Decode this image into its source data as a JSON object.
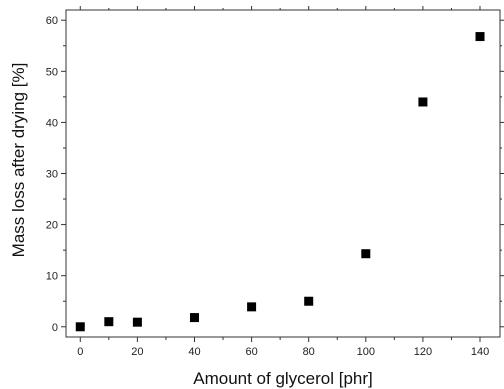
{
  "chart_data": {
    "type": "scatter",
    "title": "",
    "xlabel": "Amount of glycerol [phr]",
    "ylabel": "Mass loss after drying [%]",
    "xlim": [
      -5,
      147
    ],
    "ylim": [
      -2,
      62
    ],
    "xticks": [
      0,
      20,
      40,
      60,
      80,
      100,
      120,
      140
    ],
    "yticks": [
      0,
      10,
      20,
      30,
      40,
      50,
      60
    ],
    "grid": false,
    "legend": "none",
    "marker": "square",
    "colors": {
      "marker": "#000000",
      "axes": "#333333",
      "text": "#222222"
    },
    "series": [
      {
        "x": [
          0,
          10,
          20,
          40,
          60,
          80,
          100,
          120,
          140
        ],
        "y": [
          0.0,
          1.0,
          0.9,
          1.8,
          3.9,
          5.0,
          14.3,
          44.0,
          56.8
        ]
      }
    ]
  }
}
